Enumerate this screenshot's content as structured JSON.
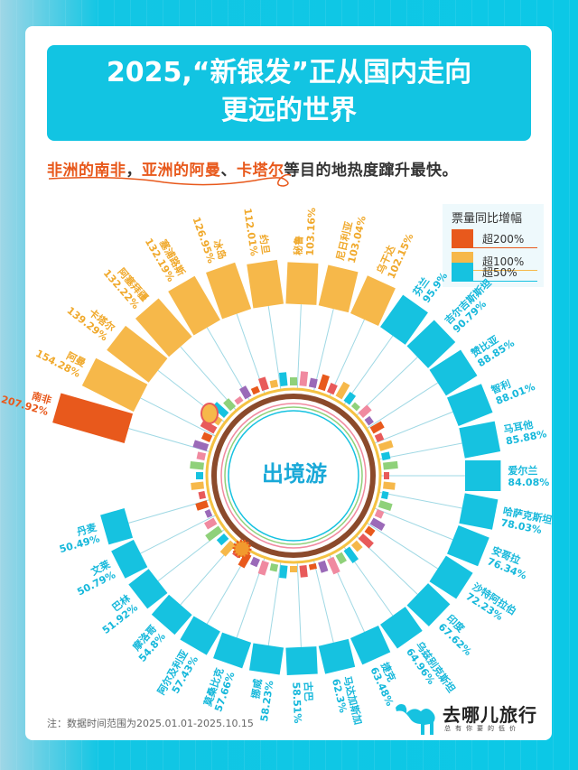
{
  "header": {
    "title_line1": "2025,“新银发”正从国内走向",
    "title_line2": "更远的世界"
  },
  "subtitle": {
    "part1": "非洲的南非",
    "sep1": "，",
    "part2": "亚洲的阿曼",
    "sep2": "、",
    "part3": "卡塔尔",
    "rest": "等目的地热度蹿升最快。"
  },
  "legend": {
    "title": "票量同比增幅",
    "items": [
      {
        "label": "超200%",
        "color": "#e8591c"
      },
      {
        "label": "超100%",
        "color": "#f6b84a"
      },
      {
        "label": "超50%",
        "color": "#16c2e0"
      }
    ]
  },
  "center_label": "出境游",
  "note": "注：数据时间范围为2025.01.01-2025.10.15",
  "logo": {
    "name": "去哪儿旅行",
    "slogan": "总有你要的低价",
    "icon": "camel-icon"
  },
  "colors": {
    "red": "#e8591c",
    "orange": "#f6b84a",
    "blue": "#16c2e0",
    "background": "#0cc8e6"
  },
  "chart_data": {
    "type": "bar",
    "subtype": "radial-bar",
    "title": "2025,“新银发”正从国内走向更远的世界",
    "subtitle": "非洲的南非，亚洲的阿曼、卡塔尔等目的地热度蹿升最快。",
    "legend_title": "票量同比增幅",
    "legend": [
      "超200%",
      "超100%",
      "超50%"
    ],
    "legend_position": "top-right",
    "unit": "%",
    "categories": [
      "南非",
      "阿曼",
      "卡塔尔",
      "阿塞拜疆",
      "塞浦路斯",
      "冰岛",
      "约旦",
      "秘鲁",
      "尼日利亚",
      "乌干达",
      "芬兰",
      "吉尔吉斯斯坦",
      "赞比亚",
      "智利",
      "马耳他",
      "爱尔兰",
      "哈萨克斯坦",
      "安哥拉",
      "沙特阿拉伯",
      "印度",
      "乌兹别克斯坦",
      "捷克",
      "马达加斯加",
      "古巴",
      "挪威",
      "莫桑比克",
      "阿尔及利亚",
      "摩洛哥",
      "巴林",
      "文莱",
      "丹麦"
    ],
    "values": [
      207.92,
      154.28,
      139.29,
      132.22,
      132.19,
      126.95,
      112.01,
      103.16,
      103.04,
      102.15,
      95.9,
      90.79,
      88.85,
      88.01,
      85.88,
      84.08,
      78.03,
      76.34,
      72.23,
      67.62,
      64.96,
      63.48,
      62.3,
      58.51,
      58.23,
      57.66,
      57.43,
      54.8,
      51.92,
      50.79,
      50.49
    ],
    "labels": [
      "207.92%",
      "154.28%",
      "139.29%",
      "132.22%",
      "132.19%",
      "126.95%",
      "112.01%",
      "103.16%",
      "103.04%",
      "102.15%",
      "95.9%",
      "90.79%",
      "88.85%",
      "88.01%",
      "85.88%",
      "84.08%",
      "78.03%",
      "76.34%",
      "72.23%",
      "67.62%",
      "64.96%",
      "63.48%",
      "62.3%",
      "58.51%",
      "58.23%",
      "57.66%",
      "57.43%",
      "54.8%",
      "51.92%",
      "50.79%",
      "50.49%"
    ],
    "tiers": [
      "超200%",
      "超100%",
      "超100%",
      "超100%",
      "超100%",
      "超100%",
      "超100%",
      "超100%",
      "超100%",
      "超100%",
      "超50%",
      "超50%",
      "超50%",
      "超50%",
      "超50%",
      "超50%",
      "超50%",
      "超50%",
      "超50%",
      "超50%",
      "超50%",
      "超50%",
      "超50%",
      "超50%",
      "超50%",
      "超50%",
      "超50%",
      "超50%",
      "超50%",
      "超50%",
      "超50%"
    ],
    "center_text": "出境游",
    "note": "注：数据时间范围为2025.01.01-2025.10.15"
  }
}
